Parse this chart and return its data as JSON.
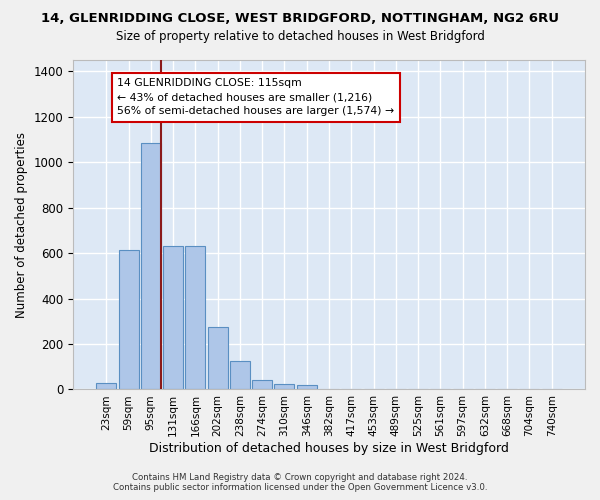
{
  "title": "14, GLENRIDDING CLOSE, WEST BRIDGFORD, NOTTINGHAM, NG2 6RU",
  "subtitle": "Size of property relative to detached houses in West Bridgford",
  "xlabel": "Distribution of detached houses by size in West Bridgford",
  "ylabel": "Number of detached properties",
  "bar_values": [
    30,
    615,
    1085,
    630,
    630,
    275,
    125,
    42,
    25,
    18,
    0,
    0,
    0,
    0,
    0,
    0,
    0,
    0,
    0,
    0,
    0
  ],
  "categories": [
    "23sqm",
    "59sqm",
    "95sqm",
    "131sqm",
    "166sqm",
    "202sqm",
    "238sqm",
    "274sqm",
    "310sqm",
    "346sqm",
    "382sqm",
    "417sqm",
    "453sqm",
    "489sqm",
    "525sqm",
    "561sqm",
    "597sqm",
    "632sqm",
    "668sqm",
    "704sqm",
    "740sqm"
  ],
  "bar_color": "#aec6e8",
  "bar_edge_color": "#5a8fc2",
  "background_color": "#dde8f5",
  "grid_color": "#ffffff",
  "vline_color": "#8b1a1a",
  "annotation_text": "14 GLENRIDDING CLOSE: 115sqm\n← 43% of detached houses are smaller (1,216)\n56% of semi-detached houses are larger (1,574) →",
  "annotation_box_color": "#ffffff",
  "annotation_box_edge": "#cc0000",
  "ylim": [
    0,
    1450
  ],
  "yticks": [
    0,
    200,
    400,
    600,
    800,
    1000,
    1200,
    1400
  ],
  "footer_line1": "Contains HM Land Registry data © Crown copyright and database right 2024.",
  "footer_line2": "Contains public sector information licensed under the Open Government Licence v3.0."
}
